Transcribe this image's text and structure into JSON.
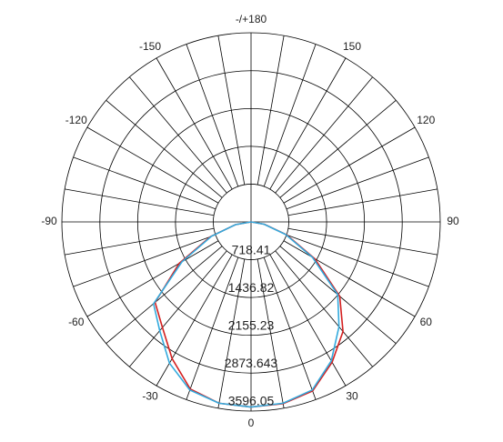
{
  "chart_data": {
    "type": "polar",
    "theta": [
      -90,
      -80,
      -70,
      -60,
      -50,
      -40,
      -30,
      -20,
      -10,
      0,
      10,
      20,
      30,
      40,
      50,
      60,
      70,
      80,
      90
    ],
    "series": [
      {
        "color": "#d42020",
        "values": [
          0,
          300,
          820,
          1580,
          2380,
          2620,
          3000,
          3380,
          3500,
          3520,
          3510,
          3420,
          3080,
          2720,
          2200,
          1400,
          720,
          260,
          0
        ]
      },
      {
        "color": "#33aadd",
        "values": [
          0,
          300,
          800,
          1520,
          2420,
          2700,
          3100,
          3400,
          3500,
          3520,
          3500,
          3400,
          3050,
          2600,
          2150,
          1350,
          700,
          250,
          0
        ]
      }
    ],
    "rlim": [
      0,
      3596.05
    ],
    "rticks": [
      718.41,
      1436.82,
      2155.23,
      2873.643,
      3596.05
    ],
    "thetaticks": [
      {
        "value": 180,
        "label": "-/+180"
      },
      150,
      120,
      90,
      60,
      30,
      0,
      -30,
      -60,
      -90,
      -120,
      -150
    ],
    "grid": true
  }
}
